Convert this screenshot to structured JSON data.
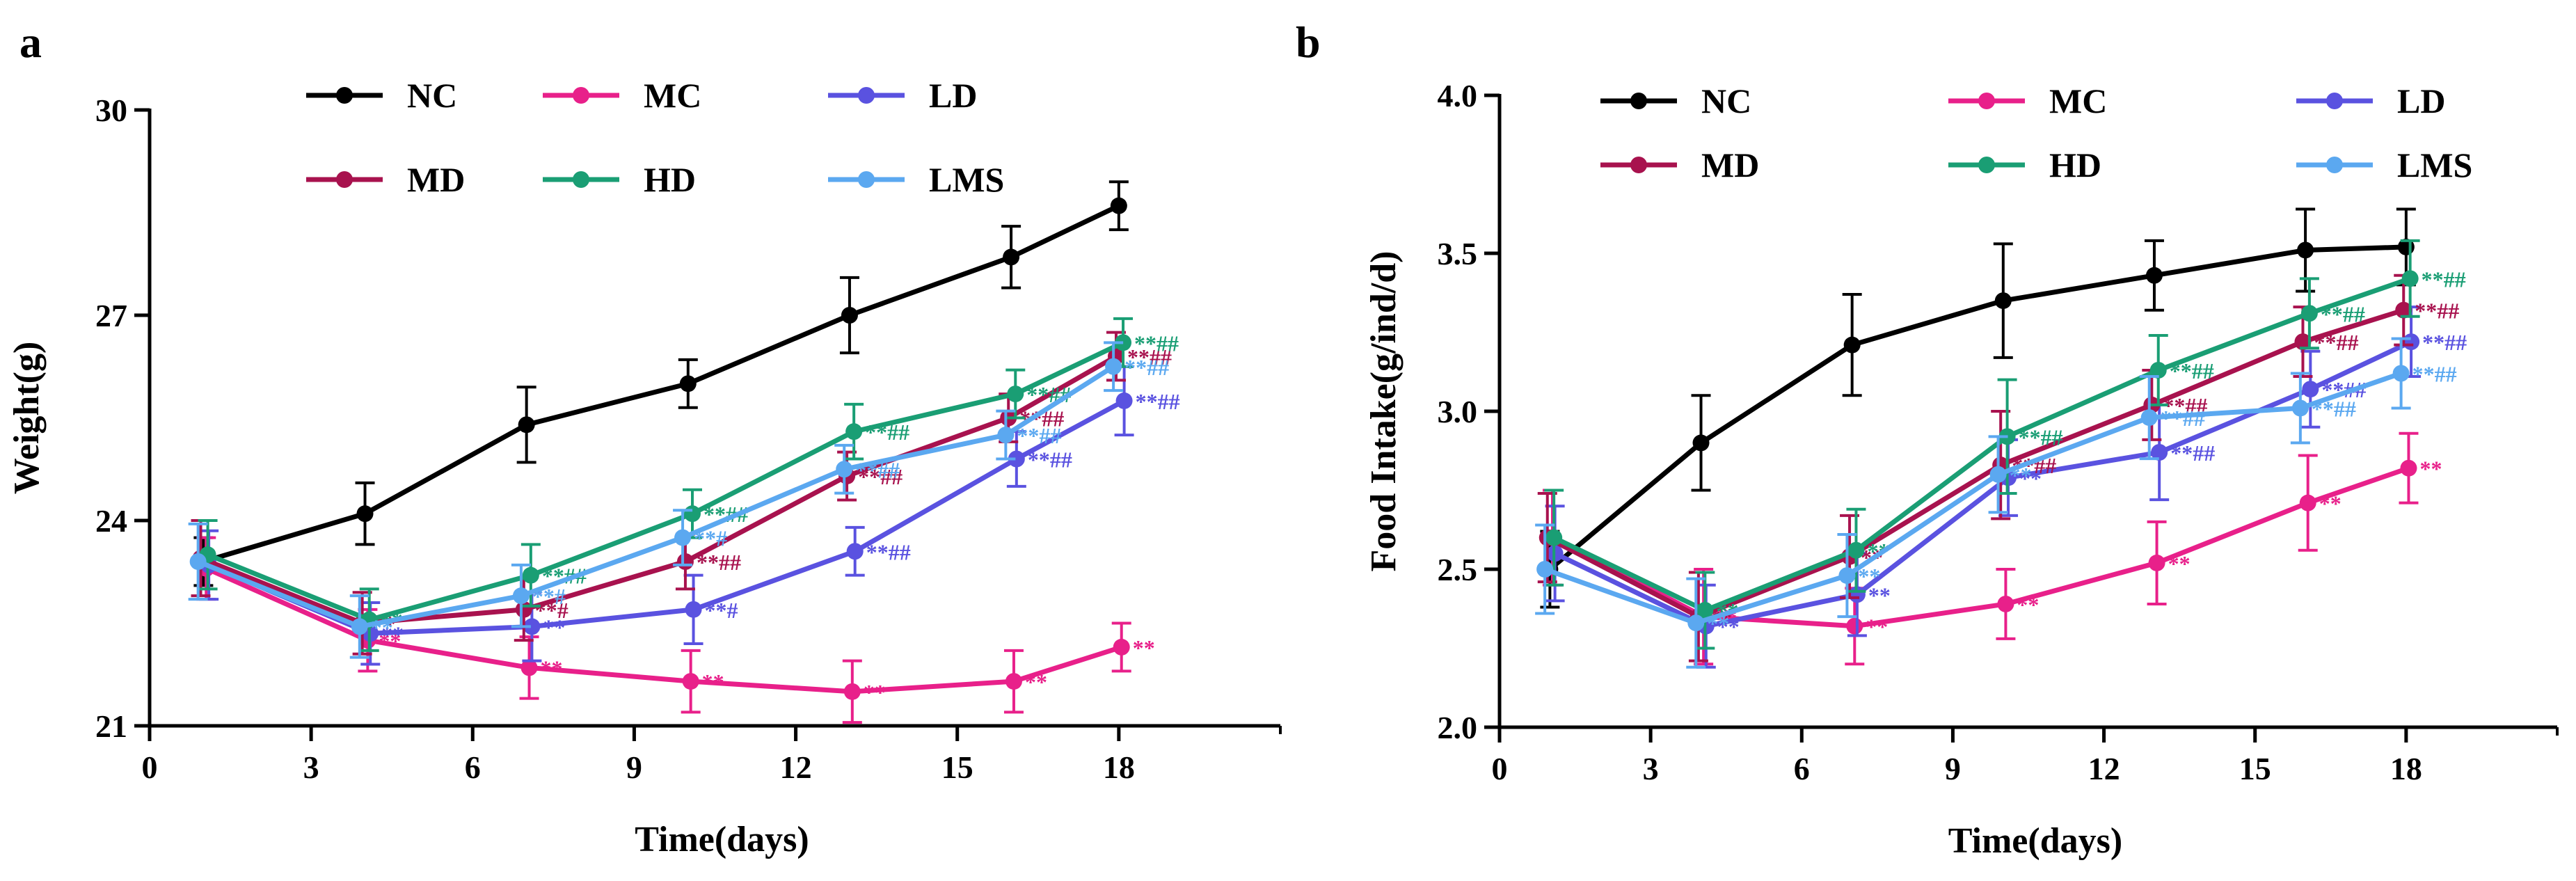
{
  "chart_data": [
    {
      "panel": "a",
      "type": "line",
      "xlabel": "Time(days)",
      "ylabel": "Weight(g)",
      "xlim": [
        0,
        21
      ],
      "ylim": [
        21,
        30
      ],
      "xticks": [
        0,
        3,
        6,
        9,
        12,
        15,
        18
      ],
      "yticks": [
        21,
        24,
        27,
        30
      ],
      "x": [
        1,
        4,
        7,
        10,
        13,
        16,
        18
      ],
      "series": [
        {
          "name": "NC",
          "color": "#000000",
          "values": [
            23.4,
            24.1,
            25.4,
            26.0,
            27.0,
            27.85,
            28.6
          ],
          "errors": [
            0.35,
            0.45,
            0.55,
            0.35,
            0.55,
            0.45,
            0.35
          ],
          "sig": [
            "",
            "",
            "",
            "",
            "",
            "",
            ""
          ]
        },
        {
          "name": "MC",
          "color": "#e8208a",
          "values": [
            23.3,
            22.25,
            21.85,
            21.65,
            21.5,
            21.65,
            22.15
          ],
          "errors": [
            0.45,
            0.45,
            0.45,
            0.45,
            0.45,
            0.45,
            0.35
          ],
          "sig": [
            "",
            "**",
            "**",
            "**",
            "**",
            "**",
            "**"
          ]
        },
        {
          "name": "LD",
          "color": "#5a52e0",
          "values": [
            23.35,
            22.35,
            22.45,
            22.7,
            23.55,
            24.9,
            25.75
          ],
          "errors": [
            0.5,
            0.45,
            0.5,
            0.5,
            0.35,
            0.4,
            0.5
          ],
          "sig": [
            "",
            "**",
            "**",
            "**#",
            "**##",
            "**##",
            "**##"
          ]
        },
        {
          "name": "MD",
          "color": "#a8124e",
          "values": [
            23.45,
            22.5,
            22.7,
            23.4,
            24.65,
            25.5,
            26.4
          ],
          "errors": [
            0.55,
            0.45,
            0.45,
            0.4,
            0.35,
            0.35,
            0.35
          ],
          "sig": [
            "",
            "**",
            "**#",
            "**##",
            "**##",
            "**##",
            "**##"
          ]
        },
        {
          "name": "HD",
          "color": "#1a9e74",
          "values": [
            23.5,
            22.55,
            23.2,
            24.1,
            25.3,
            25.85,
            26.6
          ],
          "errors": [
            0.5,
            0.45,
            0.45,
            0.35,
            0.4,
            0.35,
            0.35
          ],
          "sig": [
            "",
            "**",
            "**##",
            "**##",
            "**##",
            "**##",
            "**##"
          ]
        },
        {
          "name": "LMS",
          "color": "#5ba8f0",
          "values": [
            23.4,
            22.45,
            22.9,
            23.75,
            24.75,
            25.25,
            26.25
          ],
          "errors": [
            0.55,
            0.45,
            0.45,
            0.4,
            0.35,
            0.35,
            0.35
          ],
          "sig": [
            "",
            "**",
            "**#",
            "**#",
            "**##",
            "**##",
            "**##"
          ]
        }
      ]
    },
    {
      "panel": "b",
      "type": "line",
      "xlabel": "Time(days)",
      "ylabel": "Food Intake(g/ind/d)",
      "xlim": [
        0,
        21
      ],
      "ylim": [
        2.0,
        4.0
      ],
      "xticks": [
        0,
        3,
        6,
        9,
        12,
        15,
        18
      ],
      "yticks": [
        2.0,
        2.5,
        3.0,
        3.5,
        4.0
      ],
      "ytick_labels": [
        "2.0",
        "2.5",
        "3.0",
        "3.5",
        "4.0"
      ],
      "x": [
        1,
        4,
        7,
        10,
        13,
        16,
        18
      ],
      "series": [
        {
          "name": "NC",
          "color": "#000000",
          "values": [
            2.5,
            2.9,
            3.21,
            3.35,
            3.43,
            3.51,
            3.52
          ],
          "errors": [
            0.12,
            0.15,
            0.16,
            0.18,
            0.11,
            0.13,
            0.12
          ],
          "sig": [
            "",
            "",
            "",
            "",
            "",
            "",
            ""
          ]
        },
        {
          "name": "MC",
          "color": "#e8208a",
          "values": [
            2.6,
            2.35,
            2.32,
            2.39,
            2.52,
            2.71,
            2.82
          ],
          "errors": [
            0.15,
            0.15,
            0.12,
            0.11,
            0.13,
            0.15,
            0.11
          ],
          "sig": [
            "",
            "**",
            "**",
            "**",
            "**",
            "**",
            "**"
          ]
        },
        {
          "name": "LD",
          "color": "#5a52e0",
          "values": [
            2.55,
            2.32,
            2.42,
            2.79,
            2.87,
            3.07,
            3.22
          ],
          "errors": [
            0.15,
            0.13,
            0.13,
            0.12,
            0.15,
            0.12,
            0.11
          ],
          "sig": [
            "",
            "**",
            "**",
            "**",
            "**##",
            "**##",
            "**##"
          ]
        },
        {
          "name": "MD",
          "color": "#a8124e",
          "values": [
            2.6,
            2.35,
            2.54,
            2.83,
            3.02,
            3.22,
            3.32
          ],
          "errors": [
            0.14,
            0.14,
            0.13,
            0.17,
            0.11,
            0.11,
            0.11
          ],
          "sig": [
            "",
            "**",
            "**",
            "**##",
            "**##",
            "**##",
            "**##"
          ]
        },
        {
          "name": "HD",
          "color": "#1a9e74",
          "values": [
            2.6,
            2.37,
            2.56,
            2.92,
            3.13,
            3.31,
            3.42
          ],
          "errors": [
            0.15,
            0.12,
            0.13,
            0.18,
            0.11,
            0.11,
            0.12
          ],
          "sig": [
            "",
            "**",
            "**",
            "**##",
            "**##",
            "**##",
            "**##"
          ]
        },
        {
          "name": "LMS",
          "color": "#5ba8f0",
          "values": [
            2.5,
            2.33,
            2.48,
            2.8,
            2.98,
            3.01,
            3.12
          ],
          "errors": [
            0.14,
            0.14,
            0.13,
            0.12,
            0.13,
            0.11,
            0.11
          ],
          "sig": [
            "",
            "**",
            "**",
            "**",
            "**##",
            "**##",
            "**##"
          ]
        }
      ]
    }
  ]
}
